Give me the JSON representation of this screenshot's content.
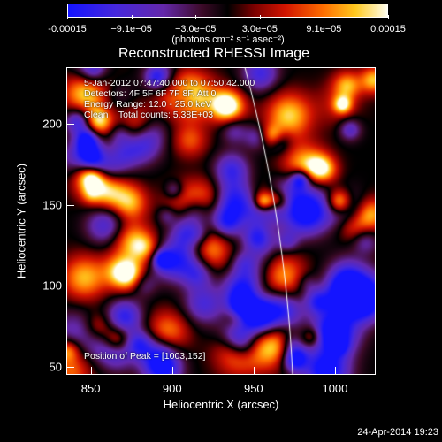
{
  "colorbar": {
    "tick_labels": [
      "-0.00015",
      "−9.1e−05",
      "−3.0e−05",
      "3.0e−05",
      "9.1e−05",
      "0.00015"
    ],
    "units": "(photons cm⁻² s⁻¹ asec⁻²)",
    "range": [
      -0.00015,
      0.00015
    ]
  },
  "chart_data": {
    "type": "heatmap",
    "title": "Reconstructed RHESSI Image",
    "xlabel": "Heliocentric X (arcsec)",
    "ylabel": "Heliocentric Y (arcsec)",
    "xlim": [
      835,
      1025
    ],
    "ylim": [
      45,
      235
    ],
    "x_ticks": [
      850,
      900,
      950,
      1000
    ],
    "y_ticks": [
      50,
      100,
      150,
      200
    ],
    "colormap": "rainbow/hot (blue-purple-red-orange-yellow-white)",
    "limb": "solar limb arc crossing near x=950-975",
    "peak": [
      1003,
      152
    ],
    "annotations": [
      "5-Jan-2012 07:47:40.000 to 07:50:42.000",
      "Detectors: 4F 5F 6F 7F 8F, Att 0",
      "Energy Range: 12.0 - 25.0 keV",
      "Clean    Total counts: 5.38E+03"
    ],
    "peak_label": "Position of Peak = [1003,152]"
  },
  "timestamp": "24-Apr-2014 19:23"
}
